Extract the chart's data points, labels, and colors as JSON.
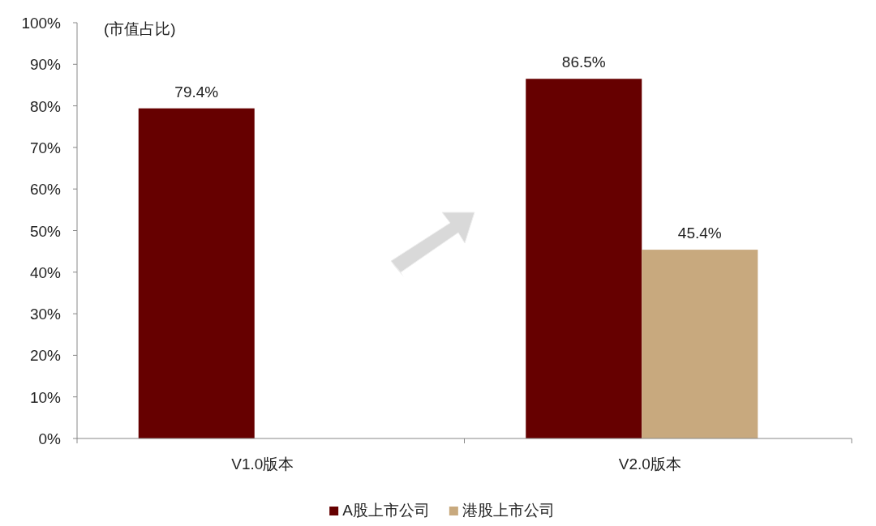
{
  "chart_data": {
    "type": "bar",
    "ylabel": "(市值占比)",
    "categories": [
      "V1.0版本",
      "V2.0版本"
    ],
    "series": [
      {
        "name": "A股上市公司",
        "color": "#660000",
        "values": [
          79.4,
          86.5
        ],
        "value_labels": [
          "79.4%",
          "86.5%"
        ]
      },
      {
        "name": "港股上市公司",
        "color": "#c8a97e",
        "values": [
          null,
          45.4
        ],
        "value_labels": [
          null,
          "45.4%"
        ]
      }
    ],
    "ylim": [
      0,
      100
    ],
    "yticks": [
      {
        "value": 0,
        "label": "0%"
      },
      {
        "value": 10,
        "label": "10%"
      },
      {
        "value": 20,
        "label": "20%"
      },
      {
        "value": 30,
        "label": "30%"
      },
      {
        "value": 40,
        "label": "40%"
      },
      {
        "value": 50,
        "label": "50%"
      },
      {
        "value": 60,
        "label": "60%"
      },
      {
        "value": 70,
        "label": "70%"
      },
      {
        "value": 80,
        "label": "80%"
      },
      {
        "value": 90,
        "label": "90%"
      },
      {
        "value": 100,
        "label": "100%"
      }
    ],
    "legend": "bottom"
  }
}
